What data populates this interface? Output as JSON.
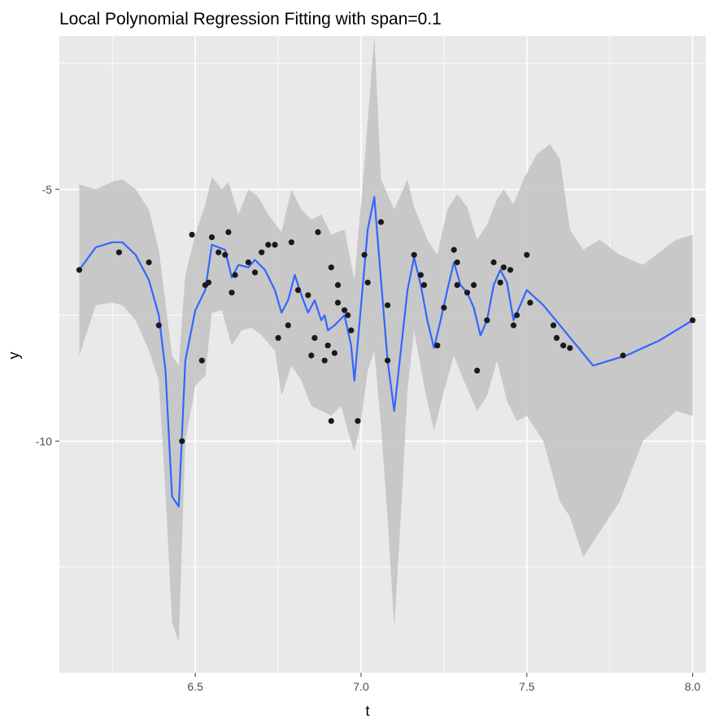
{
  "chart_data": {
    "type": "scatter",
    "title": "Local Polynomial Regression Fitting with span=0.1",
    "xlabel": "t",
    "ylabel": "y",
    "xlim": [
      6.09,
      8.04
    ],
    "ylim": [
      -14.6,
      -1.95
    ],
    "x_ticks": [
      6.5,
      7.0,
      7.5,
      8.0
    ],
    "x_tick_labels": [
      "6.5",
      "7.0",
      "7.5",
      "8.0"
    ],
    "y_ticks": [
      -5,
      -10
    ],
    "y_tick_labels": [
      "-5",
      "-10"
    ],
    "grid": true,
    "legend": "none",
    "colors": {
      "panel": "#e9e9e9",
      "grid": "#ffffff",
      "points": "#1a1a1a",
      "line": "#3366ff",
      "band": "#c2c2c2"
    },
    "points": [
      [
        6.15,
        -6.6
      ],
      [
        6.27,
        -6.25
      ],
      [
        6.36,
        -6.45
      ],
      [
        6.39,
        -7.7
      ],
      [
        6.46,
        -10.0
      ],
      [
        6.49,
        -5.9
      ],
      [
        6.52,
        -8.4
      ],
      [
        6.53,
        -6.9
      ],
      [
        6.54,
        -6.85
      ],
      [
        6.55,
        -5.95
      ],
      [
        6.57,
        -6.25
      ],
      [
        6.59,
        -6.3
      ],
      [
        6.6,
        -5.85
      ],
      [
        6.61,
        -7.05
      ],
      [
        6.62,
        -6.7
      ],
      [
        6.66,
        -6.45
      ],
      [
        6.68,
        -6.65
      ],
      [
        6.7,
        -6.25
      ],
      [
        6.72,
        -6.1
      ],
      [
        6.74,
        -6.1
      ],
      [
        6.75,
        -7.95
      ],
      [
        6.78,
        -7.7
      ],
      [
        6.79,
        -6.05
      ],
      [
        6.81,
        -7.0
      ],
      [
        6.84,
        -7.1
      ],
      [
        6.85,
        -8.3
      ],
      [
        6.86,
        -7.95
      ],
      [
        6.87,
        -5.85
      ],
      [
        6.89,
        -8.4
      ],
      [
        6.9,
        -8.1
      ],
      [
        6.91,
        -6.55
      ],
      [
        6.91,
        -9.6
      ],
      [
        6.92,
        -8.25
      ],
      [
        6.93,
        -7.25
      ],
      [
        6.93,
        -6.9
      ],
      [
        6.95,
        -7.4
      ],
      [
        6.96,
        -7.5
      ],
      [
        6.97,
        -7.8
      ],
      [
        6.99,
        -9.6
      ],
      [
        7.01,
        -6.3
      ],
      [
        7.02,
        -6.85
      ],
      [
        7.06,
        -5.65
      ],
      [
        7.08,
        -8.4
      ],
      [
        7.08,
        -7.3
      ],
      [
        7.16,
        -6.3
      ],
      [
        7.18,
        -6.7
      ],
      [
        7.19,
        -6.9
      ],
      [
        7.23,
        -8.1
      ],
      [
        7.25,
        -7.35
      ],
      [
        7.28,
        -6.2
      ],
      [
        7.29,
        -6.9
      ],
      [
        7.29,
        -6.45
      ],
      [
        7.32,
        -7.05
      ],
      [
        7.34,
        -6.9
      ],
      [
        7.35,
        -8.6
      ],
      [
        7.38,
        -7.6
      ],
      [
        7.4,
        -6.45
      ],
      [
        7.42,
        -6.85
      ],
      [
        7.43,
        -6.55
      ],
      [
        7.45,
        -6.6
      ],
      [
        7.46,
        -7.7
      ],
      [
        7.47,
        -7.5
      ],
      [
        7.5,
        -6.3
      ],
      [
        7.51,
        -7.25
      ],
      [
        7.58,
        -7.7
      ],
      [
        7.59,
        -7.95
      ],
      [
        7.61,
        -8.1
      ],
      [
        7.63,
        -8.15
      ],
      [
        7.79,
        -8.3
      ],
      [
        8.0,
        -7.6
      ]
    ],
    "smooth_line": [
      [
        6.15,
        -6.6
      ],
      [
        6.2,
        -6.15
      ],
      [
        6.25,
        -6.05
      ],
      [
        6.28,
        -6.05
      ],
      [
        6.32,
        -6.3
      ],
      [
        6.36,
        -6.8
      ],
      [
        6.39,
        -7.5
      ],
      [
        6.41,
        -8.6
      ],
      [
        6.43,
        -11.1
      ],
      [
        6.45,
        -11.3
      ],
      [
        6.47,
        -8.4
      ],
      [
        6.5,
        -7.4
      ],
      [
        6.53,
        -7.0
      ],
      [
        6.55,
        -6.1
      ],
      [
        6.57,
        -6.15
      ],
      [
        6.59,
        -6.2
      ],
      [
        6.61,
        -6.75
      ],
      [
        6.63,
        -6.5
      ],
      [
        6.66,
        -6.55
      ],
      [
        6.68,
        -6.4
      ],
      [
        6.71,
        -6.6
      ],
      [
        6.74,
        -7.0
      ],
      [
        6.76,
        -7.45
      ],
      [
        6.78,
        -7.2
      ],
      [
        6.8,
        -6.7
      ],
      [
        6.82,
        -7.1
      ],
      [
        6.84,
        -7.45
      ],
      [
        6.86,
        -7.2
      ],
      [
        6.88,
        -7.6
      ],
      [
        6.89,
        -7.5
      ],
      [
        6.9,
        -7.8
      ],
      [
        6.92,
        -7.7
      ],
      [
        6.95,
        -7.5
      ],
      [
        6.97,
        -8.1
      ],
      [
        6.98,
        -8.8
      ],
      [
        7.0,
        -7.3
      ],
      [
        7.02,
        -5.8
      ],
      [
        7.04,
        -5.15
      ],
      [
        7.06,
        -6.8
      ],
      [
        7.08,
        -8.4
      ],
      [
        7.1,
        -9.4
      ],
      [
        7.12,
        -8.2
      ],
      [
        7.14,
        -7.0
      ],
      [
        7.16,
        -6.35
      ],
      [
        7.18,
        -6.9
      ],
      [
        7.2,
        -7.6
      ],
      [
        7.22,
        -8.15
      ],
      [
        7.24,
        -7.6
      ],
      [
        7.26,
        -7.0
      ],
      [
        7.28,
        -6.45
      ],
      [
        7.3,
        -6.9
      ],
      [
        7.32,
        -7.05
      ],
      [
        7.34,
        -7.35
      ],
      [
        7.36,
        -7.9
      ],
      [
        7.38,
        -7.6
      ],
      [
        7.4,
        -6.9
      ],
      [
        7.42,
        -6.6
      ],
      [
        7.44,
        -6.85
      ],
      [
        7.46,
        -7.6
      ],
      [
        7.48,
        -7.3
      ],
      [
        7.5,
        -7.0
      ],
      [
        7.55,
        -7.3
      ],
      [
        7.6,
        -7.7
      ],
      [
        7.65,
        -8.1
      ],
      [
        7.7,
        -8.5
      ],
      [
        7.75,
        -8.4
      ],
      [
        7.8,
        -8.3
      ],
      [
        7.9,
        -8.0
      ],
      [
        8.0,
        -7.6
      ]
    ],
    "band_upper": [
      [
        6.15,
        -4.9
      ],
      [
        6.2,
        -5.0
      ],
      [
        6.25,
        -4.85
      ],
      [
        6.28,
        -4.8
      ],
      [
        6.32,
        -5.0
      ],
      [
        6.36,
        -5.4
      ],
      [
        6.39,
        -6.2
      ],
      [
        6.43,
        -8.3
      ],
      [
        6.45,
        -8.5
      ],
      [
        6.47,
        -6.7
      ],
      [
        6.5,
        -5.9
      ],
      [
        6.53,
        -5.3
      ],
      [
        6.55,
        -4.75
      ],
      [
        6.58,
        -5.0
      ],
      [
        6.6,
        -4.85
      ],
      [
        6.63,
        -5.5
      ],
      [
        6.66,
        -5.0
      ],
      [
        6.69,
        -5.15
      ],
      [
        6.72,
        -5.5
      ],
      [
        6.76,
        -5.85
      ],
      [
        6.79,
        -5.0
      ],
      [
        6.82,
        -5.4
      ],
      [
        6.85,
        -5.6
      ],
      [
        6.88,
        -5.5
      ],
      [
        6.91,
        -5.9
      ],
      [
        6.95,
        -5.8
      ],
      [
        6.98,
        -6.8
      ],
      [
        7.01,
        -4.5
      ],
      [
        7.04,
        -1.95
      ],
      [
        7.06,
        -4.8
      ],
      [
        7.1,
        -5.4
      ],
      [
        7.14,
        -4.8
      ],
      [
        7.16,
        -5.35
      ],
      [
        7.2,
        -6.0
      ],
      [
        7.23,
        -6.3
      ],
      [
        7.26,
        -5.4
      ],
      [
        7.29,
        -5.1
      ],
      [
        7.32,
        -5.35
      ],
      [
        7.35,
        -6.0
      ],
      [
        7.38,
        -5.7
      ],
      [
        7.41,
        -5.2
      ],
      [
        7.43,
        -5.0
      ],
      [
        7.46,
        -5.3
      ],
      [
        7.49,
        -4.8
      ],
      [
        7.53,
        -4.3
      ],
      [
        7.57,
        -4.1
      ],
      [
        7.6,
        -4.4
      ],
      [
        7.63,
        -5.8
      ],
      [
        7.67,
        -6.2
      ],
      [
        7.72,
        -6.0
      ],
      [
        7.78,
        -6.3
      ],
      [
        7.85,
        -6.5
      ],
      [
        7.95,
        -6.0
      ],
      [
        8.0,
        -5.9
      ]
    ],
    "band_lower": [
      [
        6.15,
        -8.3
      ],
      [
        6.2,
        -7.3
      ],
      [
        6.25,
        -7.25
      ],
      [
        6.28,
        -7.3
      ],
      [
        6.32,
        -7.6
      ],
      [
        6.36,
        -8.2
      ],
      [
        6.39,
        -8.8
      ],
      [
        6.41,
        -11.0
      ],
      [
        6.43,
        -13.6
      ],
      [
        6.45,
        -14.0
      ],
      [
        6.47,
        -10.0
      ],
      [
        6.5,
        -8.9
      ],
      [
        6.53,
        -8.7
      ],
      [
        6.55,
        -7.45
      ],
      [
        6.58,
        -7.4
      ],
      [
        6.61,
        -8.1
      ],
      [
        6.64,
        -7.8
      ],
      [
        6.67,
        -7.75
      ],
      [
        6.7,
        -7.9
      ],
      [
        6.74,
        -8.2
      ],
      [
        6.76,
        -9.1
      ],
      [
        6.79,
        -8.5
      ],
      [
        6.82,
        -8.8
      ],
      [
        6.85,
        -9.3
      ],
      [
        6.88,
        -9.4
      ],
      [
        6.91,
        -9.5
      ],
      [
        6.94,
        -9.3
      ],
      [
        6.96,
        -9.8
      ],
      [
        6.98,
        -10.2
      ],
      [
        7.0,
        -9.6
      ],
      [
        7.02,
        -8.6
      ],
      [
        7.04,
        -8.2
      ],
      [
        7.06,
        -9.7
      ],
      [
        7.08,
        -11.5
      ],
      [
        7.1,
        -13.7
      ],
      [
        7.12,
        -11.5
      ],
      [
        7.14,
        -9.0
      ],
      [
        7.16,
        -7.8
      ],
      [
        7.19,
        -8.9
      ],
      [
        7.22,
        -9.8
      ],
      [
        7.25,
        -9.0
      ],
      [
        7.28,
        -8.3
      ],
      [
        7.31,
        -8.8
      ],
      [
        7.35,
        -9.4
      ],
      [
        7.38,
        -9.1
      ],
      [
        7.41,
        -8.4
      ],
      [
        7.44,
        -9.2
      ],
      [
        7.47,
        -9.6
      ],
      [
        7.5,
        -9.5
      ],
      [
        7.55,
        -10.0
      ],
      [
        7.6,
        -11.2
      ],
      [
        7.63,
        -11.5
      ],
      [
        7.67,
        -12.3
      ],
      [
        7.72,
        -11.8
      ],
      [
        7.78,
        -11.2
      ],
      [
        7.85,
        -10.0
      ],
      [
        7.95,
        -9.4
      ],
      [
        8.0,
        -9.5
      ]
    ]
  }
}
